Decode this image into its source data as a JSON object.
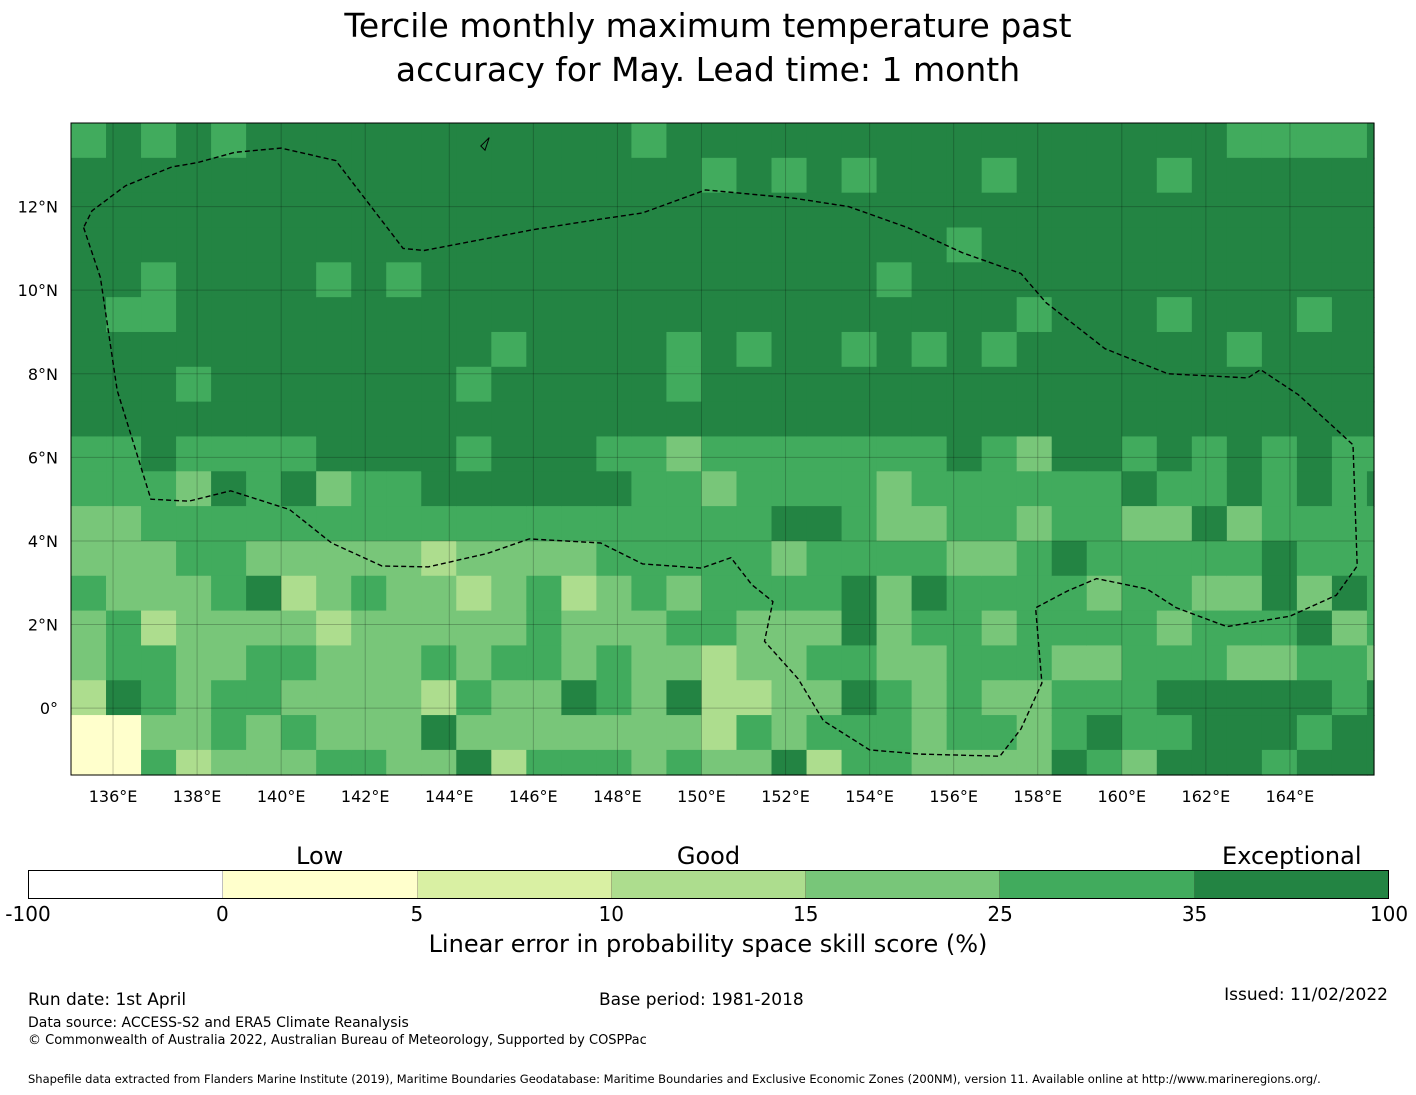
{
  "title": {
    "line1": "Tercile monthly maximum temperature past",
    "line2": "accuracy for May. Lead time: 1 month"
  },
  "map": {
    "lon_range": [
      135,
      166
    ],
    "lat_range": [
      -1.6,
      14
    ],
    "grid_step_deg": 0.8333,
    "lat_ticks": [
      {
        "value": 12,
        "label": "12°N"
      },
      {
        "value": 10,
        "label": "10°N"
      },
      {
        "value": 8,
        "label": "8°N"
      },
      {
        "value": 6,
        "label": "6°N"
      },
      {
        "value": 4,
        "label": "4°N"
      },
      {
        "value": 2,
        "label": "2°N"
      },
      {
        "value": 0,
        "label": "0°"
      }
    ],
    "lon_ticks": [
      {
        "value": 136,
        "label": "136°E"
      },
      {
        "value": 138,
        "label": "138°E"
      },
      {
        "value": 140,
        "label": "140°E"
      },
      {
        "value": 142,
        "label": "142°E"
      },
      {
        "value": 144,
        "label": "144°E"
      },
      {
        "value": 146,
        "label": "146°E"
      },
      {
        "value": 148,
        "label": "148°E"
      },
      {
        "value": 150,
        "label": "150°E"
      },
      {
        "value": 152,
        "label": "152°E"
      },
      {
        "value": 154,
        "label": "154°E"
      },
      {
        "value": 156,
        "label": "156°E"
      },
      {
        "value": 158,
        "label": "158°E"
      },
      {
        "value": 160,
        "label": "160°E"
      },
      {
        "value": 162,
        "label": "162°E"
      },
      {
        "value": 164,
        "label": "164°E"
      }
    ],
    "eez_boundary": [
      [
        135.3,
        11.5
      ],
      [
        135.7,
        10.3
      ],
      [
        136.1,
        7.6
      ],
      [
        136.9,
        5.0
      ],
      [
        137.8,
        4.95
      ],
      [
        138.8,
        5.2
      ],
      [
        140.2,
        4.75
      ],
      [
        141.2,
        3.95
      ],
      [
        142.4,
        3.4
      ],
      [
        143.5,
        3.38
      ],
      [
        144.9,
        3.7
      ],
      [
        145.9,
        4.05
      ],
      [
        147.6,
        3.95
      ],
      [
        148.6,
        3.45
      ],
      [
        150.0,
        3.35
      ],
      [
        150.7,
        3.6
      ],
      [
        151.2,
        2.95
      ],
      [
        151.7,
        2.55
      ],
      [
        151.5,
        1.6
      ],
      [
        152.3,
        0.7
      ],
      [
        152.9,
        -0.3
      ],
      [
        154.0,
        -1.0
      ],
      [
        155.2,
        -1.1
      ],
      [
        157.1,
        -1.15
      ],
      [
        157.6,
        -0.5
      ],
      [
        158.1,
        0.6
      ],
      [
        157.95,
        2.4
      ],
      [
        158.7,
        2.8
      ],
      [
        159.4,
        3.1
      ],
      [
        160.6,
        2.85
      ],
      [
        161.3,
        2.4
      ],
      [
        162.5,
        1.95
      ],
      [
        164.0,
        2.2
      ],
      [
        165.1,
        2.7
      ],
      [
        165.6,
        3.4
      ],
      [
        165.5,
        6.3
      ],
      [
        164.2,
        7.5
      ],
      [
        163.3,
        8.1
      ],
      [
        163.0,
        7.9
      ],
      [
        161.1,
        8.0
      ],
      [
        159.6,
        8.6
      ],
      [
        158.2,
        9.7
      ],
      [
        157.6,
        10.4
      ],
      [
        156.2,
        10.9
      ],
      [
        154.9,
        11.5
      ],
      [
        153.5,
        12.0
      ],
      [
        152.2,
        12.2
      ],
      [
        150.1,
        12.4
      ],
      [
        148.6,
        11.85
      ],
      [
        147.6,
        11.7
      ],
      [
        146.0,
        11.45
      ],
      [
        143.4,
        10.95
      ],
      [
        142.9,
        11.0
      ],
      [
        141.3,
        13.1
      ],
      [
        140.0,
        13.4
      ],
      [
        138.9,
        13.3
      ],
      [
        138.0,
        13.05
      ],
      [
        137.4,
        12.95
      ],
      [
        136.3,
        12.5
      ],
      [
        135.5,
        11.9
      ],
      [
        135.3,
        11.5
      ]
    ],
    "islands": [
      [
        144.75,
        13.45
      ],
      [
        144.85,
        13.55
      ],
      [
        144.95,
        13.65
      ],
      [
        144.85,
        13.35
      ],
      [
        144.75,
        13.45
      ]
    ]
  },
  "categories": [
    {
      "label": "Low",
      "center_value": 2.5
    },
    {
      "label": "Good",
      "center_value": 12.5
    },
    {
      "label": "Exceptional",
      "center_value": 67.5
    }
  ],
  "colorbar": {
    "ticks": [
      "-100",
      "0",
      "5",
      "10",
      "15",
      "25",
      "35",
      "100"
    ],
    "colors": [
      "#ffffff",
      "#ffffcc",
      "#d9f0a3",
      "#addd8e",
      "#78c679",
      "#41ab5d",
      "#238443"
    ],
    "label": "Linear error in probability space skill score (%)"
  },
  "footer": {
    "run_date": "Run date: 1st April",
    "base_period": "Base period: 1981-2018",
    "issued": "Issued: 11/02/2022",
    "data_source": "Data source: ACCESS-S2 and ERA5 Climate Reanalysis",
    "copyright": "© Commonwealth of Australia 2022, Australian Bureau of Meteorology, Supported by COSPPac",
    "shapefile": "Shapefile data extracted from Flanders Marine Institute (2019), Maritime Boundaries Geodatabase: Maritime Boundaries and Exclusive Economic Zones (200NM), version 11. Available online at http://www.marineregions.org/."
  }
}
